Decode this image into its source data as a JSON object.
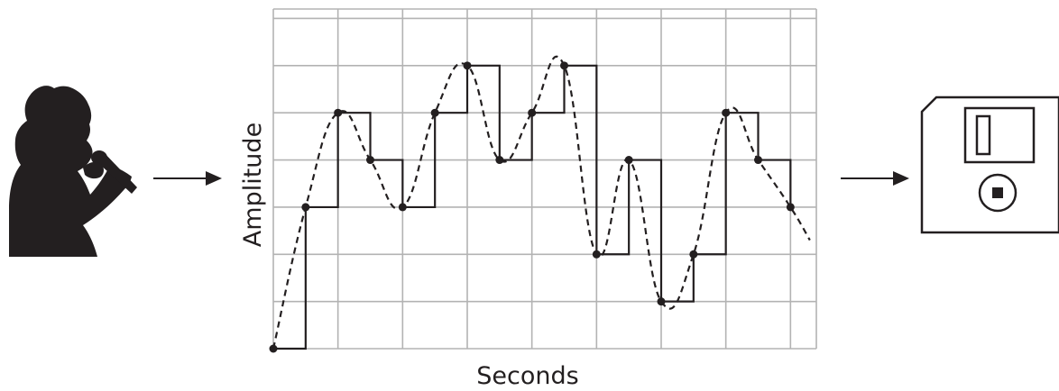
{
  "diagram": {
    "source_icon": "singer-with-microphone-icon",
    "target_icon": "floppy-disk-icon",
    "arrow_icon": "right-arrow-icon"
  },
  "chart_data": {
    "type": "line",
    "xlabel": "Seconds",
    "ylabel": "Amplitude",
    "grid": true,
    "xlim": [
      0,
      16.8
    ],
    "ylim": [
      0,
      7.2
    ],
    "samples": [
      {
        "x": 0,
        "y": 0
      },
      {
        "x": 1,
        "y": 3
      },
      {
        "x": 2,
        "y": 5
      },
      {
        "x": 3,
        "y": 4
      },
      {
        "x": 4,
        "y": 3
      },
      {
        "x": 5,
        "y": 5
      },
      {
        "x": 6,
        "y": 6
      },
      {
        "x": 7,
        "y": 4
      },
      {
        "x": 8,
        "y": 5
      },
      {
        "x": 9,
        "y": 6
      },
      {
        "x": 10,
        "y": 2
      },
      {
        "x": 11,
        "y": 4
      },
      {
        "x": 12,
        "y": 1
      },
      {
        "x": 13,
        "y": 2
      },
      {
        "x": 14,
        "y": 5
      },
      {
        "x": 15,
        "y": 4
      },
      {
        "x": 16,
        "y": 3
      }
    ],
    "series": [
      {
        "style": "dashed-smooth-curve"
      },
      {
        "style": "solid-step"
      }
    ]
  }
}
